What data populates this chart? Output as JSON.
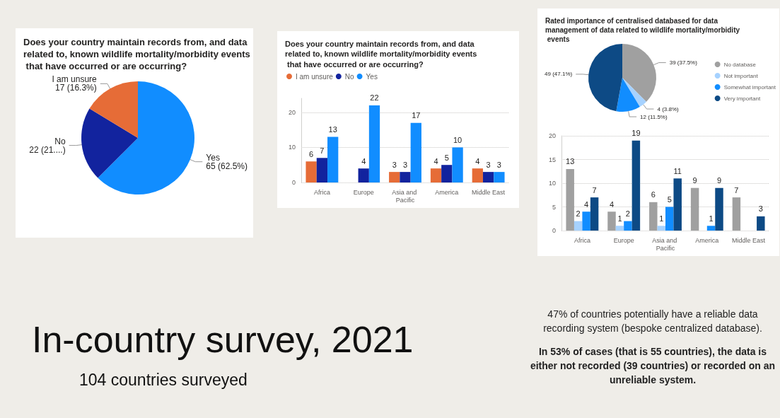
{
  "chart_data": [
    {
      "type": "pie",
      "title": "Does your country maintain records from, and data related to, known wildlife mortality/morbidity events that have occurred or are occurring?",
      "categories": [
        "Yes",
        "No",
        "I am unsure"
      ],
      "values": [
        65,
        22,
        17
      ],
      "colors": [
        "#118dff",
        "#12239e",
        "#e66c37"
      ],
      "value_labels": [
        "65 (62.5%)",
        "22 (21....)",
        "17 (16.3%)"
      ]
    },
    {
      "type": "bar",
      "title": "Does your country maintain records from, and data related to, known wildlife mortality/morbidity events that have occurred or are occurring?",
      "categories": [
        "Africa",
        "Europe",
        "Asia and Pacific",
        "America",
        "Middle East"
      ],
      "series": [
        {
          "name": "I am unsure",
          "color": "#e66c37",
          "values": [
            6,
            null,
            3,
            4,
            4
          ]
        },
        {
          "name": "No",
          "color": "#12239e",
          "values": [
            7,
            4,
            3,
            5,
            3
          ]
        },
        {
          "name": "Yes",
          "color": "#118dff",
          "values": [
            13,
            22,
            17,
            10,
            3
          ]
        }
      ],
      "ylim": [
        0,
        24
      ],
      "yticks": [
        0,
        10,
        20
      ],
      "grid": "y",
      "legend": "top left",
      "data_labels": true
    },
    {
      "type": "pie",
      "title": "Rated importance of centralised databased for data management of data related to wildlife mortality/morbidity events",
      "categories": [
        "No database",
        "Not important",
        "Somewhat important",
        "Very important"
      ],
      "values": [
        39,
        4,
        12,
        49
      ],
      "colors": [
        "#a0a0a0",
        "#a6d2ff",
        "#118dff",
        "#0d4a85"
      ],
      "value_labels": [
        "39 (37.5%)",
        "4 (3.8%)",
        "12 (11.5%)",
        "49 (47.1%)"
      ],
      "legend": "right"
    },
    {
      "type": "bar",
      "categories": [
        "Africa",
        "Europe",
        "Asia and Pacific",
        "America",
        "Middle East"
      ],
      "series": [
        {
          "color": "#a0a0a0",
          "values": [
            13,
            4,
            6,
            9,
            7
          ]
        },
        {
          "color": "#a6d2ff",
          "values": [
            2,
            1,
            1,
            null,
            null
          ]
        },
        {
          "color": "#118dff",
          "values": [
            4,
            2,
            5,
            1,
            null
          ]
        },
        {
          "color": "#0d4a85",
          "values": [
            7,
            19,
            11,
            9,
            3
          ]
        }
      ],
      "ylim": [
        0,
        20
      ],
      "yticks": [
        0,
        5,
        10,
        15,
        20
      ],
      "grid": "y",
      "data_labels": true
    },
    {
      "type": "other",
      "title": "In-country survey, 2021",
      "subtitle": "104 countries surveyed",
      "annotations": [
        "47% of countries potentially have a reliable data recording system (bespoke centralized database).",
        "In 53% of cases (that is 55 countries), the data is either not recorded (39 countries) or recorded on an unreliable system."
      ]
    }
  ]
}
